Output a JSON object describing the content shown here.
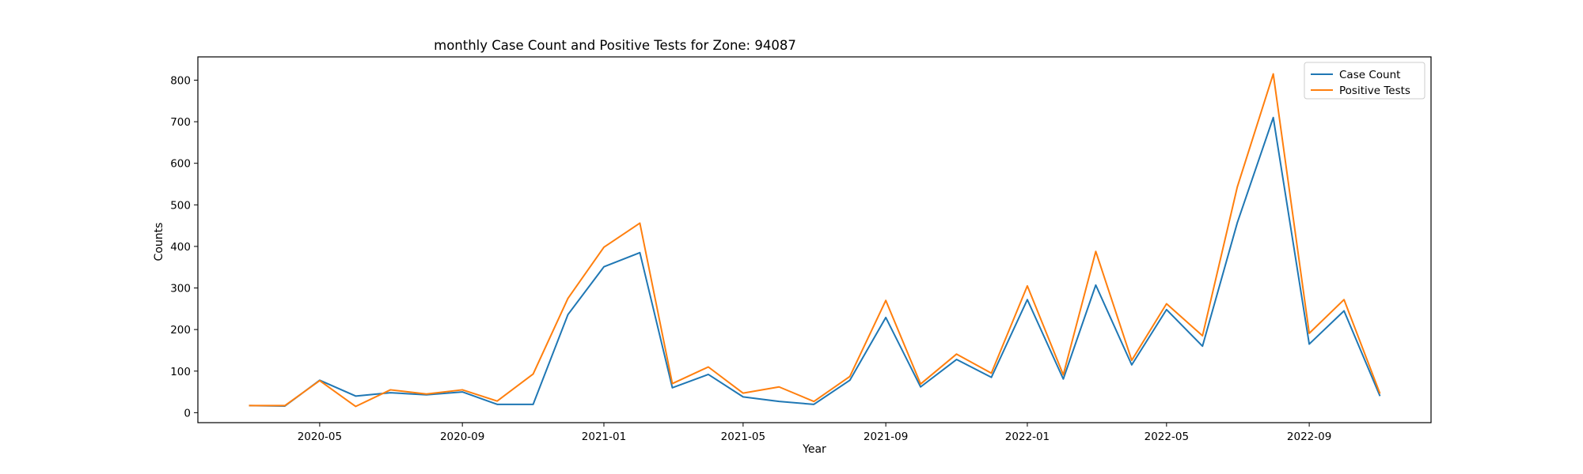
{
  "chart_data": {
    "type": "line",
    "title": "monthly Case Count and Positive Tests for Zone: 94087",
    "xlabel": "Year",
    "ylabel": "Counts",
    "x": [
      "2020-03",
      "2020-04",
      "2020-05",
      "2020-06",
      "2020-07",
      "2020-08",
      "2020-09",
      "2020-10",
      "2020-11",
      "2020-12",
      "2021-01",
      "2021-02",
      "2021-03",
      "2021-04",
      "2021-05",
      "2021-06",
      "2021-07",
      "2021-08",
      "2021-09",
      "2021-10",
      "2021-11",
      "2021-12",
      "2022-01",
      "2022-02",
      "2022-03",
      "2022-04",
      "2022-05",
      "2022-06",
      "2022-07",
      "2022-08",
      "2022-09",
      "2022-10",
      "2022-11"
    ],
    "series": [
      {
        "name": "Case Count",
        "color": "#1f77b4",
        "values": [
          17,
          16,
          78,
          40,
          48,
          43,
          50,
          20,
          20,
          236,
          351,
          385,
          60,
          92,
          38,
          27,
          20,
          78,
          229,
          62,
          128,
          85,
          272,
          81,
          307,
          115,
          248,
          160,
          457,
          710,
          165,
          245,
          40
        ]
      },
      {
        "name": "Positive Tests",
        "color": "#ff7f0e",
        "values": [
          17,
          17,
          77,
          15,
          55,
          45,
          55,
          28,
          93,
          275,
          398,
          456,
          70,
          110,
          47,
          62,
          27,
          87,
          270,
          69,
          141,
          95,
          305,
          91,
          388,
          126,
          262,
          185,
          543,
          815,
          191,
          272,
          46
        ]
      }
    ],
    "xticks": [
      "2020-05",
      "2020-09",
      "2021-01",
      "2021-05",
      "2021-09",
      "2022-01",
      "2022-05",
      "2022-09"
    ],
    "yticks": [
      0,
      100,
      200,
      300,
      400,
      500,
      600,
      700,
      800
    ],
    "xlim": [
      "2020-01-17",
      "2022-12-15"
    ],
    "ylim": [
      -24,
      856
    ],
    "legend": "top-right",
    "grid": false
  }
}
